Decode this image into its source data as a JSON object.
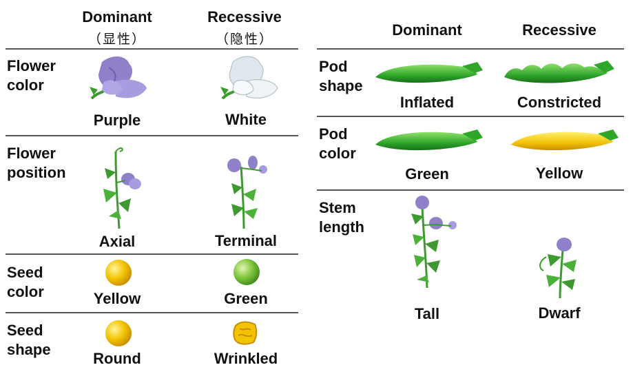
{
  "left": {
    "header": {
      "dominant": "Dominant",
      "dominant_zh": "（显性）",
      "recessive": "Recessive",
      "recessive_zh": "（隐性）"
    },
    "rows": [
      {
        "trait": [
          "Flower",
          "color"
        ],
        "dominant": "Purple",
        "recessive": "White"
      },
      {
        "trait": [
          "Flower",
          "position"
        ],
        "dominant": "Axial",
        "recessive": "Terminal"
      },
      {
        "trait": [
          "Seed",
          "color"
        ],
        "dominant": "Yellow",
        "recessive": "Green"
      },
      {
        "trait": [
          "Seed",
          "shape"
        ],
        "dominant": "Round",
        "recessive": "Wrinkled"
      }
    ]
  },
  "right": {
    "header": {
      "dominant": "Dominant",
      "recessive": "Recessive"
    },
    "rows": [
      {
        "trait": [
          "Pod",
          "shape"
        ],
        "dominant": "Inflated",
        "recessive": "Constricted"
      },
      {
        "trait": [
          "Pod",
          "color"
        ],
        "dominant": "Green",
        "recessive": "Yellow"
      },
      {
        "trait": [
          "Stem",
          "length"
        ],
        "dominant": "Tall",
        "recessive": "Dwarf"
      }
    ]
  },
  "colors": {
    "purple": "#9b8ccf",
    "white_flower": "#e8eef2",
    "leaf": "#3d9a2e",
    "seed_yellow": "#f2c400",
    "seed_green": "#7cc43a",
    "pod_green": "#2fa52a",
    "pod_yellow": "#f2c20a",
    "rule": "#555555"
  },
  "icons": [
    "purple-flower-icon",
    "white-flower-icon",
    "axial-plant-icon",
    "terminal-plant-icon",
    "yellow-seed-icon",
    "green-seed-icon",
    "round-seed-icon",
    "wrinkled-seed-icon",
    "inflated-pod-icon",
    "constricted-pod-icon",
    "green-pod-icon",
    "yellow-pod-icon",
    "tall-plant-icon",
    "dwarf-plant-icon"
  ]
}
